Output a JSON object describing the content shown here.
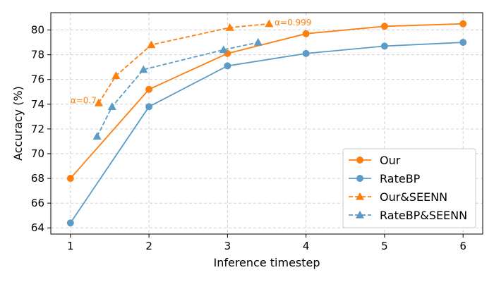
{
  "chart_data": {
    "type": "line",
    "title": "",
    "xlabel": "Inference timestep",
    "ylabel": "Accuracy (%)",
    "xlim": [
      0.75,
      6.25
    ],
    "ylim": [
      63.5,
      81.4
    ],
    "xticks": [
      1,
      2,
      3,
      4,
      5,
      6
    ],
    "yticks": [
      64,
      66,
      68,
      70,
      72,
      74,
      76,
      78,
      80
    ],
    "grid": true,
    "legend_position": "bottom-right",
    "series": [
      {
        "name": "Our",
        "color": "#ff7f0e",
        "linestyle": "solid",
        "marker": "circle",
        "x": [
          1,
          2,
          3,
          4,
          5,
          6
        ],
        "y": [
          68.0,
          75.2,
          78.1,
          79.7,
          80.3,
          80.5
        ]
      },
      {
        "name": "RateBP",
        "color": "#5b9bc8",
        "linestyle": "solid",
        "marker": "circle",
        "x": [
          1,
          2,
          3,
          4,
          5,
          6
        ],
        "y": [
          64.4,
          73.8,
          77.1,
          78.1,
          78.7,
          79.0
        ]
      },
      {
        "name": "Our&SEENN",
        "color": "#ff7f0e",
        "linestyle": "dashed",
        "marker": "triangle",
        "x": [
          1.36,
          1.58,
          2.03,
          3.03,
          3.53
        ],
        "y": [
          74.1,
          76.3,
          78.8,
          80.2,
          80.5
        ]
      },
      {
        "name": "RateBP&SEENN",
        "color": "#5b9bc8",
        "linestyle": "dashed",
        "marker": "triangle",
        "x": [
          1.34,
          1.53,
          1.93,
          2.95,
          3.39
        ],
        "y": [
          71.4,
          73.8,
          76.8,
          78.4,
          79.0
        ]
      }
    ],
    "annotations": [
      {
        "text": "α=0.7",
        "x": 1.0,
        "y": 74.3,
        "color": "#ff7f0e",
        "anchor": "left"
      },
      {
        "text": "α=0.999",
        "x": 3.6,
        "y": 80.6,
        "color": "#ff7f0e",
        "anchor": "left"
      }
    ]
  }
}
